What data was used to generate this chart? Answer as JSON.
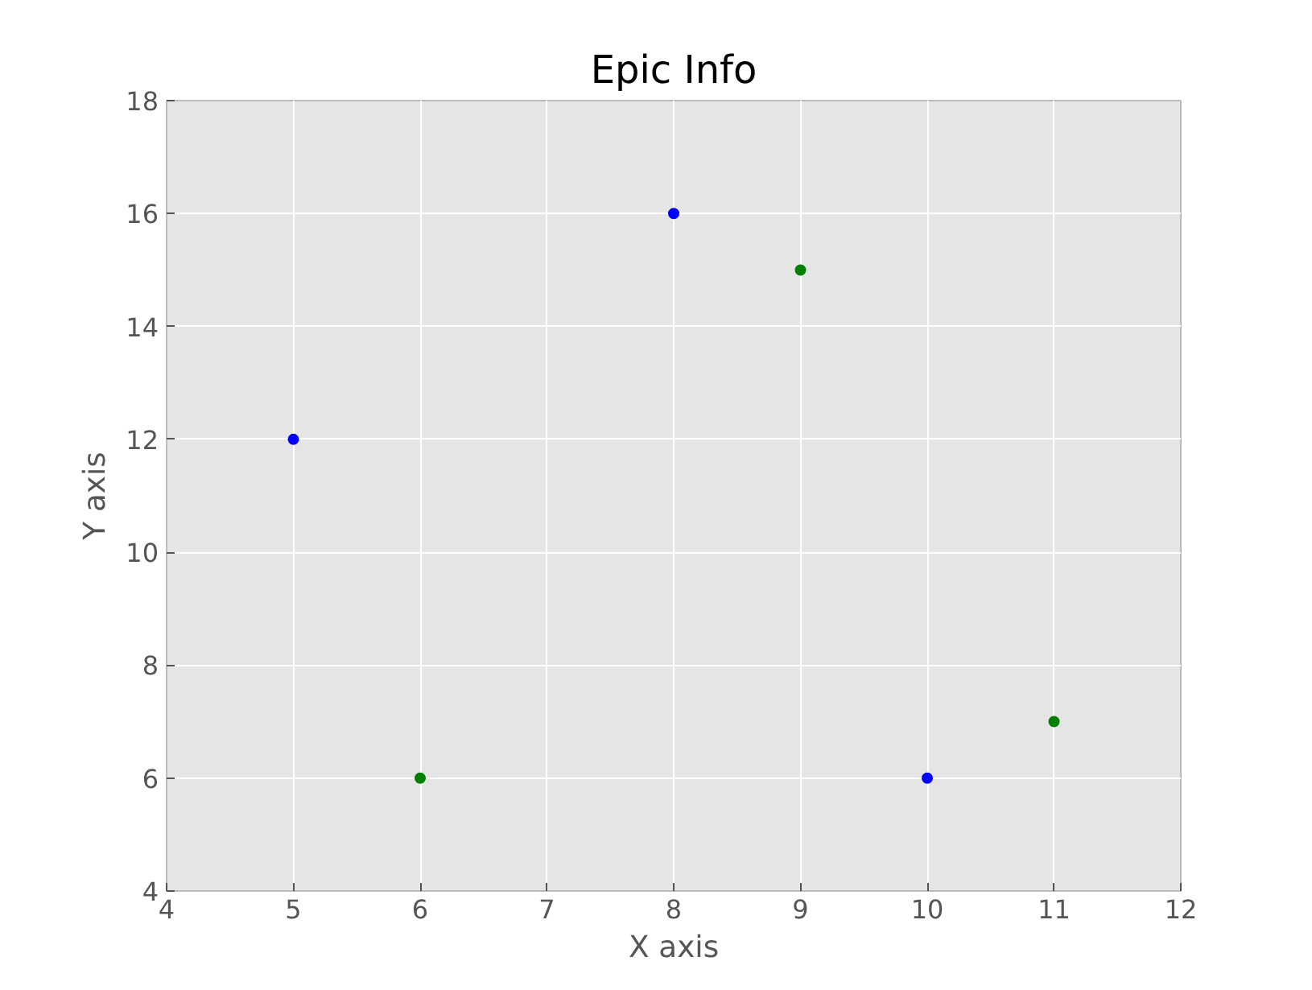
{
  "chart_data": {
    "type": "scatter",
    "title": "Epic Info",
    "xlabel": "X axis",
    "ylabel": "Y axis",
    "series": [
      {
        "color": "#0000ff",
        "x": [
          5,
          8,
          10
        ],
        "values": [
          12,
          16,
          6
        ]
      },
      {
        "color": "#008000",
        "x": [
          6,
          9,
          11
        ],
        "values": [
          6,
          15,
          7
        ]
      }
    ],
    "xlim": [
      4,
      12
    ],
    "ylim": [
      4,
      18
    ],
    "xticks": [
      4,
      5,
      6,
      7,
      8,
      9,
      10,
      11,
      12
    ],
    "yticks": [
      4,
      6,
      8,
      10,
      12,
      14,
      16,
      18
    ],
    "grid": true,
    "marker": "circle"
  }
}
